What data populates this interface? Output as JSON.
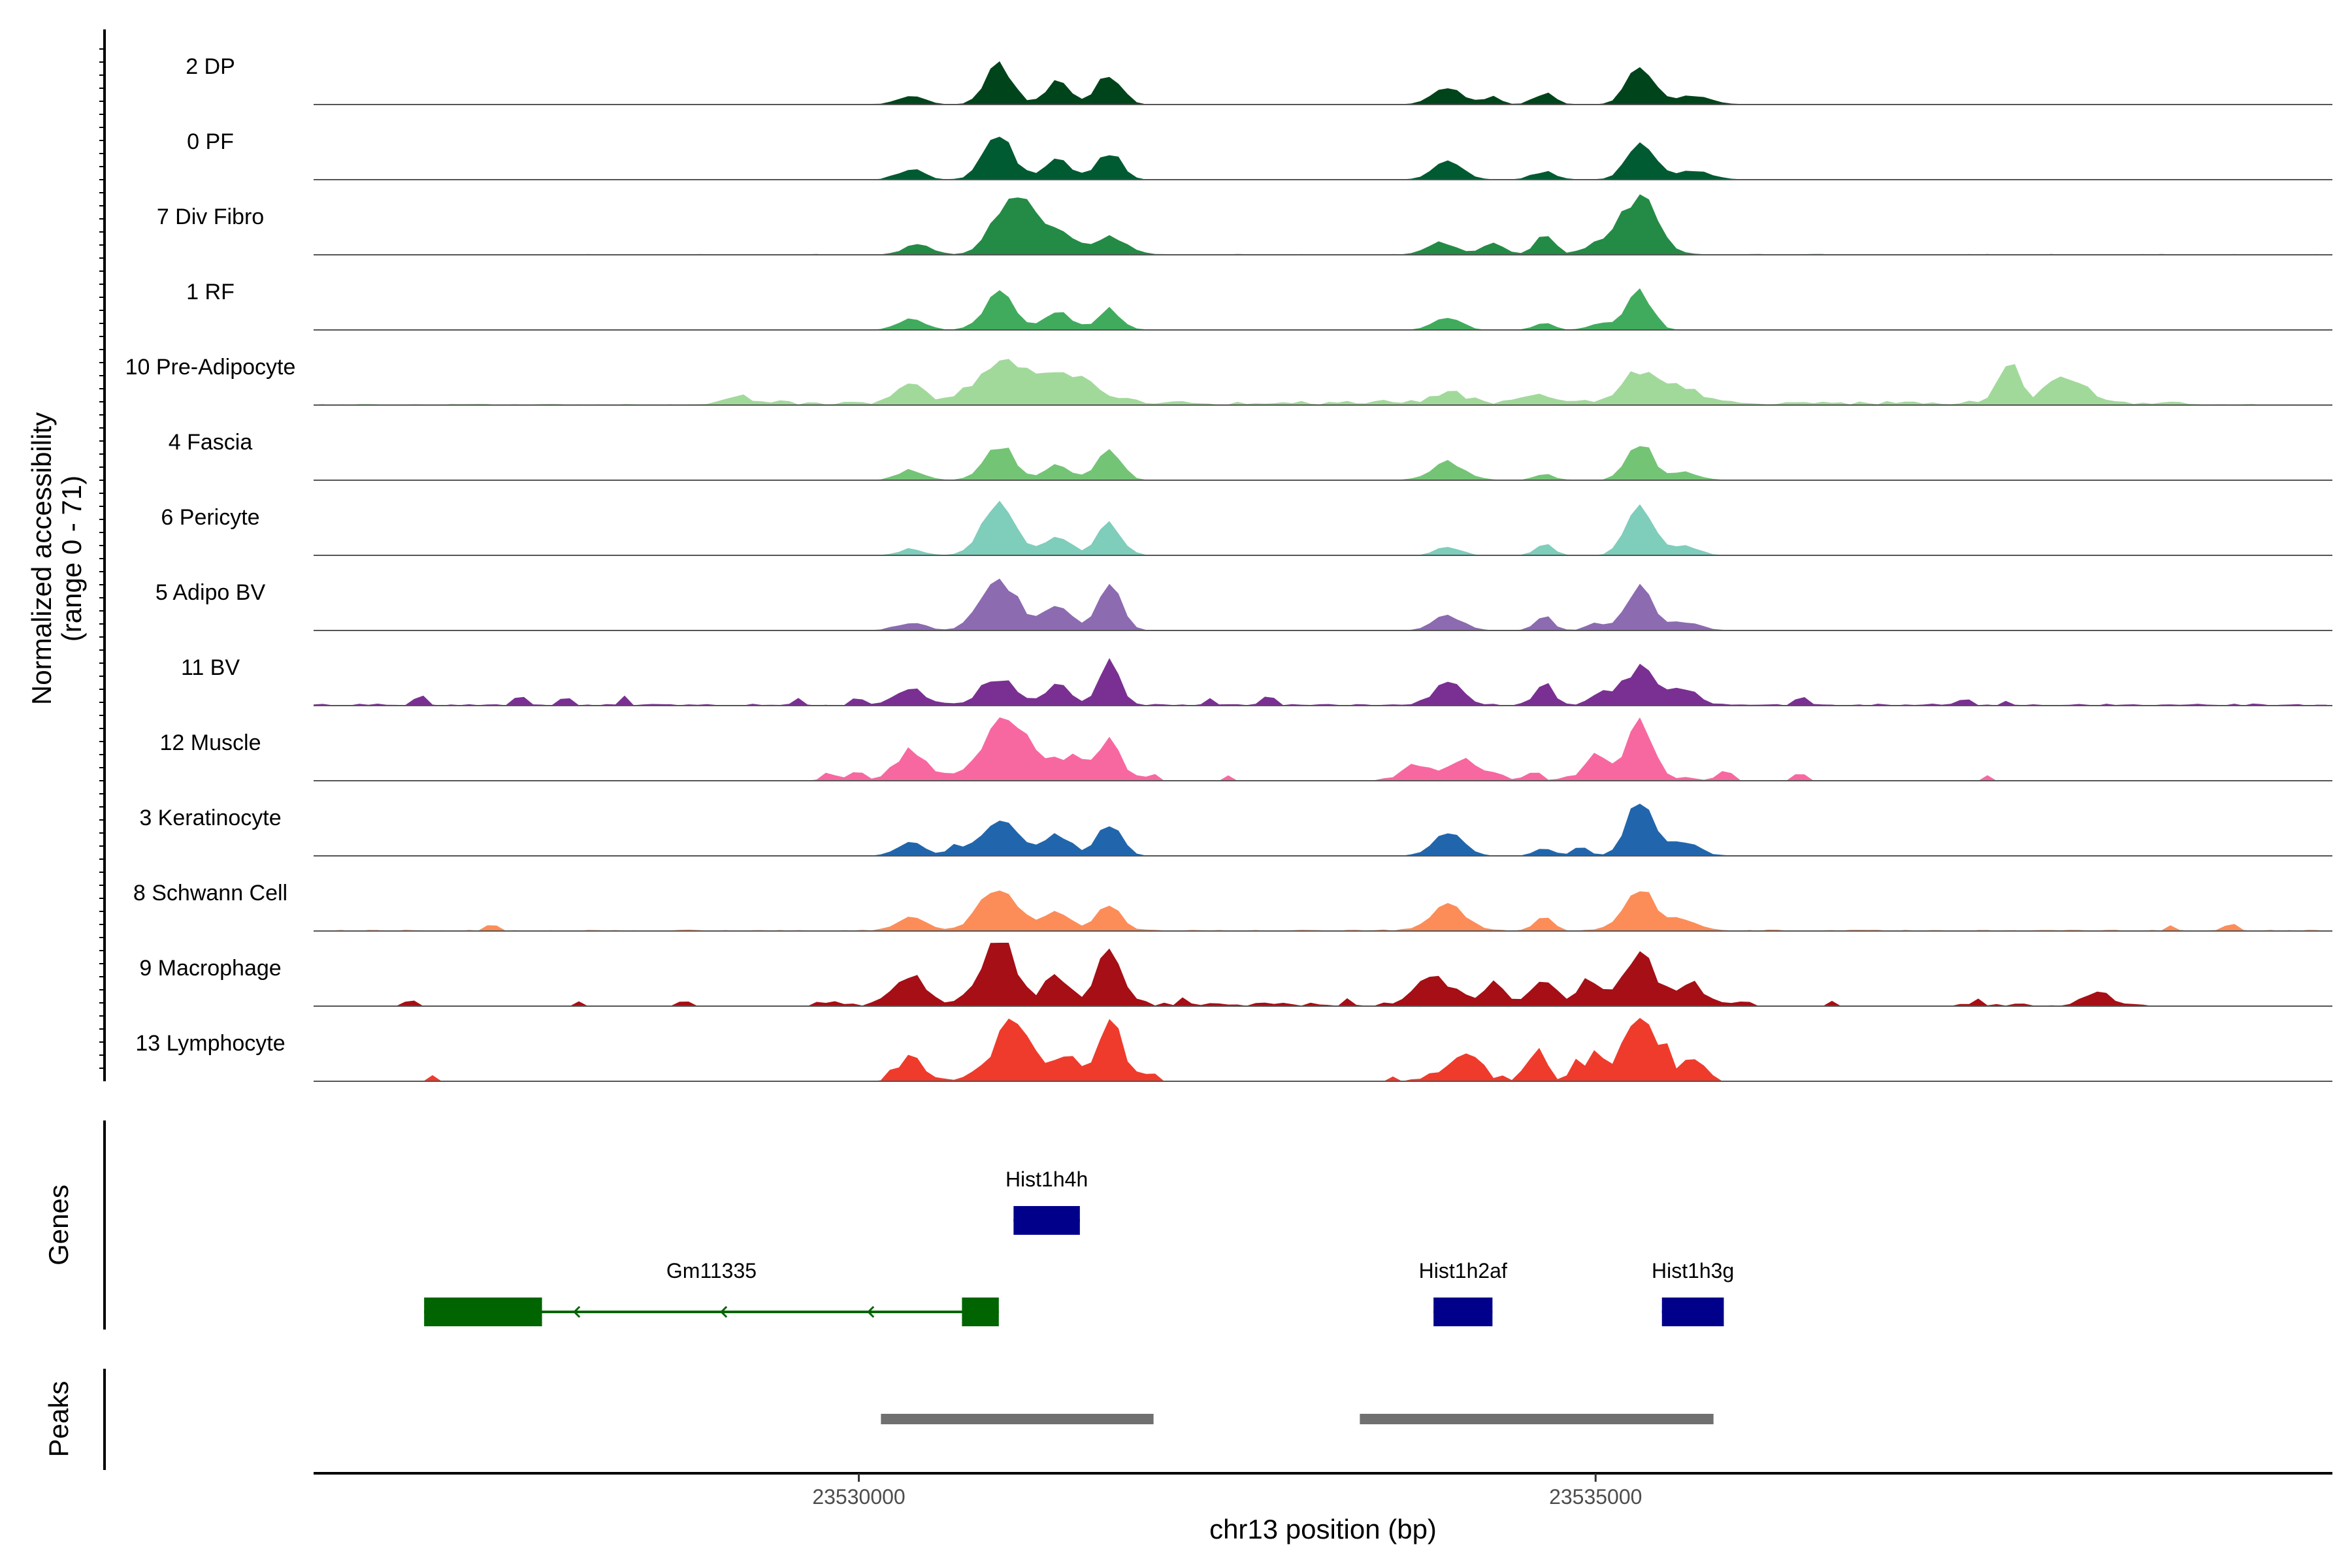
{
  "chart_data": {
    "type": "area",
    "title": "",
    "ylabel": "Normalized accessibility",
    "ylabel_range": "(range 0 - 71)",
    "y_range": [
      0,
      71
    ],
    "xlabel": "chr13 position (bp)",
    "chromosome": "chr13",
    "x_range": [
      23526300,
      23540000
    ],
    "x_ticks": [
      23530000,
      23535000
    ],
    "x_tick_labels": [
      "23530000",
      "23535000"
    ],
    "tracks_label_genes": "Genes",
    "tracks_label_peaks": "Peaks",
    "series": [
      {
        "name": "2 DP",
        "color": "#00441b",
        "max": 24,
        "seed": 11,
        "peaks": [
          [
            23530950,
            90,
            62
          ],
          [
            23531350,
            80,
            38
          ],
          [
            23531700,
            80,
            48
          ],
          [
            23530350,
            90,
            14
          ],
          [
            23534000,
            100,
            26
          ],
          [
            23534650,
            70,
            18
          ],
          [
            23534300,
            50,
            14
          ],
          [
            23535300,
            90,
            64
          ],
          [
            23535650,
            120,
            14
          ]
        ],
        "noise": [
          [
            23526300,
            23540000,
            0.8
          ]
        ]
      },
      {
        "name": "0 PF",
        "color": "#005a32",
        "max": 24,
        "seed": 12,
        "peaks": [
          [
            23530950,
            100,
            68
          ],
          [
            23531350,
            90,
            32
          ],
          [
            23531700,
            80,
            44
          ],
          [
            23530350,
            90,
            16
          ],
          [
            23534000,
            100,
            28
          ],
          [
            23534650,
            80,
            12
          ],
          [
            23535300,
            90,
            60
          ],
          [
            23535650,
            120,
            14
          ]
        ],
        "noise": [
          [
            23526300,
            23540000,
            0.8
          ]
        ]
      },
      {
        "name": "7 Div Fibro",
        "color": "#238b45",
        "max": 24,
        "seed": 13,
        "peaks": [
          [
            23531050,
            130,
            96
          ],
          [
            23531350,
            100,
            32
          ],
          [
            23531700,
            120,
            26
          ],
          [
            23530400,
            90,
            18
          ],
          [
            23533950,
            100,
            20
          ],
          [
            23534300,
            80,
            16
          ],
          [
            23534650,
            60,
            36
          ],
          [
            23535300,
            120,
            90
          ],
          [
            23535050,
            120,
            18
          ]
        ],
        "noise": [
          [
            23526300,
            23540000,
            1.2
          ]
        ]
      },
      {
        "name": "1 RF",
        "color": "#41ab5d",
        "max": 24,
        "seed": 14,
        "peaks": [
          [
            23530950,
            100,
            58
          ],
          [
            23531350,
            90,
            26
          ],
          [
            23531700,
            80,
            32
          ],
          [
            23530350,
            90,
            18
          ],
          [
            23534000,
            90,
            20
          ],
          [
            23534650,
            60,
            12
          ],
          [
            23535300,
            80,
            60
          ],
          [
            23535050,
            80,
            12
          ]
        ],
        "noise": [
          [
            23526300,
            23540000,
            0.8
          ]
        ]
      },
      {
        "name": "10 Pre-Adipocyte",
        "color": "#a1d99b",
        "max": 24,
        "seed": 15,
        "peaks": [
          [
            23531000,
            180,
            66
          ],
          [
            23531450,
            180,
            40
          ],
          [
            23530350,
            100,
            30
          ],
          [
            23534000,
            120,
            16
          ],
          [
            23534600,
            120,
            14
          ],
          [
            23535300,
            120,
            48
          ],
          [
            23535600,
            120,
            22
          ],
          [
            23537800,
            70,
            64
          ],
          [
            23538200,
            130,
            40
          ],
          [
            23529200,
            60,
            12
          ]
        ],
        "noise": [
          [
            23526300,
            23540000,
            2.0
          ],
          [
            23529000,
            23539000,
            6.0
          ]
        ]
      },
      {
        "name": "4 Fascia",
        "color": "#74c476",
        "max": 24,
        "seed": 16,
        "peaks": [
          [
            23530950,
            100,
            56
          ],
          [
            23531350,
            90,
            24
          ],
          [
            23531700,
            80,
            46
          ],
          [
            23530350,
            90,
            16
          ],
          [
            23534000,
            110,
            28
          ],
          [
            23534650,
            60,
            10
          ],
          [
            23535300,
            90,
            58
          ],
          [
            23535600,
            100,
            12
          ]
        ],
        "noise": [
          [
            23526300,
            23540000,
            0.8
          ]
        ]
      },
      {
        "name": "6 Pericyte",
        "color": "#7fcdbb",
        "max": 24,
        "seed": 17,
        "peaks": [
          [
            23530950,
            110,
            80
          ],
          [
            23531350,
            90,
            28
          ],
          [
            23531700,
            80,
            52
          ],
          [
            23530350,
            80,
            10
          ],
          [
            23534000,
            80,
            14
          ],
          [
            23534650,
            60,
            18
          ],
          [
            23535300,
            90,
            82
          ],
          [
            23535600,
            100,
            14
          ]
        ],
        "noise": [
          [
            23526300,
            23540000,
            0.8
          ]
        ]
      },
      {
        "name": "5 Adipo BV",
        "color": "#8c6bb1",
        "max": 24,
        "seed": 18,
        "peaks": [
          [
            23530950,
            120,
            84
          ],
          [
            23531350,
            100,
            36
          ],
          [
            23531700,
            80,
            72
          ],
          [
            23530350,
            100,
            12
          ],
          [
            23534000,
            100,
            24
          ],
          [
            23534650,
            60,
            22
          ],
          [
            23535300,
            90,
            70
          ],
          [
            23535600,
            100,
            14
          ],
          [
            23535000,
            60,
            12
          ]
        ],
        "noise": [
          [
            23526300,
            23540000,
            0.8
          ]
        ]
      },
      {
        "name": "11 BV",
        "color": "#7a3092",
        "max": 24,
        "seed": 19,
        "peaks": [
          [
            23530950,
            120,
            42
          ],
          [
            23531350,
            80,
            32
          ],
          [
            23531700,
            70,
            74
          ],
          [
            23530350,
            100,
            26
          ],
          [
            23534000,
            100,
            34
          ],
          [
            23534650,
            60,
            32
          ],
          [
            23535300,
            100,
            58
          ],
          [
            23535600,
            100,
            26
          ],
          [
            23535050,
            80,
            20
          ]
        ],
        "noise": [
          [
            23526300,
            23540000,
            3.0
          ]
        ],
        "spikes": [
          [
            23527000,
            12
          ],
          [
            23527700,
            10
          ],
          [
            23528000,
            8
          ],
          [
            23528400,
            12
          ],
          [
            23529600,
            10
          ],
          [
            23530000,
            10
          ],
          [
            23532400,
            10
          ],
          [
            23532800,
            10
          ],
          [
            23536400,
            10
          ],
          [
            23537500,
            8
          ],
          [
            23537800,
            8
          ]
        ]
      },
      {
        "name": "12 Muscle",
        "color": "#f768a1",
        "max": 24,
        "seed": 20,
        "peaks": [
          [
            23531000,
            150,
            96
          ],
          [
            23531450,
            120,
            36
          ],
          [
            23531700,
            70,
            60
          ],
          [
            23530350,
            100,
            46
          ],
          [
            23534100,
            140,
            30
          ],
          [
            23535300,
            90,
            96
          ],
          [
            23535000,
            70,
            40
          ],
          [
            23533750,
            80,
            20
          ]
        ],
        "noise": [
          [
            23529700,
            23532000,
            6.0
          ],
          [
            23533500,
            23536000,
            6.0
          ]
        ],
        "spikes": [
          [
            23529800,
            8
          ],
          [
            23530000,
            10
          ],
          [
            23532000,
            12
          ],
          [
            23532500,
            10
          ],
          [
            23534600,
            10
          ],
          [
            23535900,
            10
          ],
          [
            23536400,
            10
          ],
          [
            23537650,
            8
          ]
        ]
      },
      {
        "name": "3 Keratinocyte",
        "color": "#2166ac",
        "max": 24,
        "seed": 21,
        "peaks": [
          [
            23530950,
            120,
            58
          ],
          [
            23531350,
            90,
            34
          ],
          [
            23531700,
            80,
            50
          ],
          [
            23530350,
            90,
            22
          ],
          [
            23530650,
            50,
            14
          ],
          [
            23534000,
            100,
            36
          ],
          [
            23534650,
            60,
            12
          ],
          [
            23535300,
            90,
            88
          ],
          [
            23535600,
            100,
            22
          ],
          [
            23534900,
            50,
            16
          ]
        ],
        "noise": [
          [
            23526300,
            23540000,
            0.8
          ]
        ]
      },
      {
        "name": "8 Schwann Cell",
        "color": "#fc8d59",
        "max": 24,
        "seed": 22,
        "peaks": [
          [
            23530950,
            120,
            74
          ],
          [
            23531350,
            90,
            30
          ],
          [
            23531700,
            80,
            44
          ],
          [
            23530350,
            100,
            20
          ],
          [
            23534000,
            120,
            40
          ],
          [
            23534650,
            60,
            22
          ],
          [
            23535300,
            110,
            62
          ],
          [
            23535600,
            100,
            16
          ]
        ],
        "noise": [
          [
            23526300,
            23540000,
            2.0
          ]
        ],
        "spikes": [
          [
            23527500,
            8
          ],
          [
            23538900,
            8
          ],
          [
            23539300,
            8
          ]
        ]
      },
      {
        "name": "9 Macrophage",
        "color": "#a50f15",
        "max": 24,
        "seed": 23,
        "peaks": [
          [
            23530950,
            120,
            96
          ],
          [
            23531350,
            80,
            46
          ],
          [
            23531700,
            80,
            90
          ],
          [
            23530350,
            100,
            46
          ],
          [
            23533900,
            120,
            46
          ],
          [
            23534300,
            70,
            34
          ],
          [
            23534650,
            80,
            36
          ],
          [
            23535300,
            110,
            72
          ],
          [
            23534950,
            80,
            36
          ],
          [
            23535650,
            90,
            30
          ],
          [
            23538400,
            90,
            22
          ]
        ],
        "noise": [
          [
            23529700,
            23536100,
            8.0
          ],
          [
            23537400,
            23538800,
            4.0
          ]
        ],
        "spikes": [
          [
            23526950,
            8
          ],
          [
            23528100,
            8
          ],
          [
            23528800,
            8
          ],
          [
            23533300,
            12
          ],
          [
            23532200,
            10
          ],
          [
            23536600,
            8
          ],
          [
            23537600,
            10
          ]
        ]
      },
      {
        "name": "13 Lymphocyte",
        "color": "#ef3b2c",
        "max": 24,
        "seed": 24,
        "peaks": [
          [
            23531050,
            120,
            90
          ],
          [
            23531400,
            90,
            30
          ],
          [
            23531700,
            80,
            96
          ],
          [
            23530350,
            80,
            36
          ],
          [
            23534100,
            100,
            42
          ],
          [
            23534600,
            60,
            38
          ],
          [
            23535300,
            100,
            110
          ],
          [
            23535000,
            60,
            44
          ],
          [
            23535650,
            70,
            34
          ]
        ],
        "noise": [
          [
            23530200,
            23532000,
            10.0
          ],
          [
            23533600,
            23535800,
            10.0
          ]
        ],
        "spikes": [
          [
            23527100,
            10
          ],
          [
            23532000,
            12
          ],
          [
            23534850,
            20
          ],
          [
            23535500,
            30
          ]
        ]
      }
    ],
    "genes": [
      {
        "name": "Hist1h4h",
        "start": 23531050,
        "end": 23531500,
        "strand": "+",
        "color": "#00008b",
        "row": 1,
        "exons": [
          [
            23531050,
            23531500
          ]
        ]
      },
      {
        "name": "Gm11335",
        "start": 23527050,
        "end": 23530950,
        "strand": "-",
        "color": "#006400",
        "row": 2,
        "exons": [
          [
            23527050,
            23527850
          ],
          [
            23530700,
            23530950
          ]
        ]
      },
      {
        "name": "Hist1h2af",
        "start": 23533900,
        "end": 23534300,
        "strand": "+",
        "color": "#00008b",
        "row": 2,
        "exons": [
          [
            23533900,
            23534300
          ]
        ]
      },
      {
        "name": "Hist1h3g",
        "start": 23535450,
        "end": 23535870,
        "strand": "+",
        "color": "#00008b",
        "row": 2,
        "exons": [
          [
            23535450,
            23535870
          ]
        ]
      }
    ],
    "peak_regions": [
      {
        "start": 23530150,
        "end": 23532000,
        "color": "#707070"
      },
      {
        "start": 23533400,
        "end": 23535800,
        "color": "#707070"
      }
    ]
  }
}
